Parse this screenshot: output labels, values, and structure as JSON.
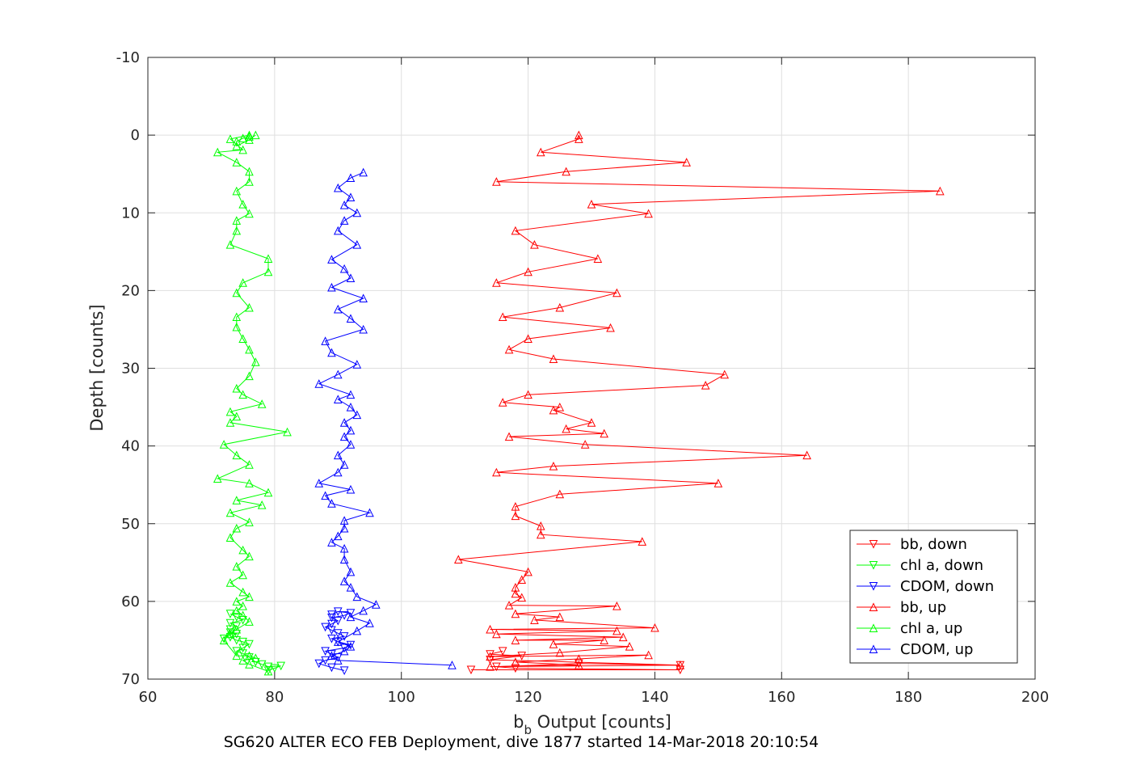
{
  "chart_data": {
    "type": "line",
    "caption": "SG620 ALTER ECO FEB Deployment, dive 1877 started 14-Mar-2018 20:10:54",
    "xlabel": {
      "main": "b",
      "sub": "b",
      "rest": " Output [counts]"
    },
    "ylabel": "Depth [counts]",
    "xlim": [
      60,
      200
    ],
    "ylim": [
      -10,
      70
    ],
    "y_reversed": true,
    "grid": true,
    "x_ticks": [
      "60",
      "80",
      "100",
      "120",
      "140",
      "160",
      "180",
      "200"
    ],
    "y_ticks": [
      "-10",
      "0",
      "10",
      "20",
      "30",
      "40",
      "50",
      "60",
      "70"
    ],
    "legend_position": "bottom-right",
    "series": [
      {
        "name": "bb, down",
        "color": "#ff0000",
        "marker": "triangle-down",
        "x": [
          111,
          144,
          118,
          115,
          128,
          144,
          114,
          119,
          114,
          116
        ],
        "y": [
          68.8,
          68.8,
          68.6,
          68.4,
          68.0,
          68.2,
          67.5,
          67.0,
          66.8,
          66.4
        ]
      },
      {
        "name": "chl a, down",
        "color": "#00ff00",
        "marker": "triangle-down",
        "x": [
          79,
          80,
          81,
          79,
          78,
          77,
          76,
          75,
          74,
          75,
          76,
          75,
          74,
          73,
          74,
          73,
          72,
          73,
          74,
          73,
          75,
          74,
          73
        ],
        "y": [
          68.9,
          68.6,
          68.3,
          68.4,
          68.1,
          67.8,
          67.2,
          66.7,
          66.4,
          66.0,
          65.5,
          65.2,
          65.0,
          64.6,
          64.2,
          64.0,
          64.8,
          63.6,
          63.2,
          62.8,
          62.4,
          62.0,
          61.6
        ]
      },
      {
        "name": "CDOM, down",
        "color": "#0000ff",
        "marker": "triangle-down",
        "x": [
          91,
          89,
          87,
          88,
          90,
          89,
          88,
          91,
          92,
          90,
          89,
          91,
          90,
          89,
          88,
          89,
          90,
          89,
          91,
          92,
          90,
          89
        ],
        "y": [
          68.9,
          68.5,
          68.0,
          67.6,
          67.2,
          66.8,
          66.4,
          66.0,
          65.6,
          65.2,
          64.8,
          64.5,
          64.1,
          63.7,
          63.3,
          62.9,
          62.5,
          62.1,
          61.8,
          61.5,
          61.3,
          61.7
        ]
      },
      {
        "name": "bb, up",
        "color": "#ff0000",
        "marker": "triangle-up",
        "x": [
          144,
          114,
          128,
          118,
          128,
          139,
          114,
          125,
          136,
          124,
          132,
          118,
          135,
          115,
          134,
          114,
          140,
          121,
          125,
          118,
          134,
          117,
          119,
          118,
          118,
          119,
          120,
          109,
          138,
          122,
          122,
          118,
          118,
          125,
          150,
          115,
          124,
          164,
          129,
          117,
          132,
          126,
          130,
          124,
          125,
          116,
          120,
          148,
          151,
          124,
          117,
          120,
          133,
          116,
          125,
          134,
          115,
          120,
          131,
          121,
          118,
          139,
          130,
          185,
          115,
          126,
          145,
          122,
          128,
          128
        ],
        "y": [
          68.2,
          68.4,
          68.2,
          67.8,
          67.4,
          66.9,
          67.1,
          66.6,
          65.8,
          65.5,
          65.0,
          65.0,
          64.6,
          64.2,
          63.8,
          63.6,
          63.4,
          62.4,
          62.0,
          61.6,
          60.6,
          60.5,
          59.5,
          59.0,
          58.2,
          57.2,
          56.2,
          54.6,
          52.3,
          51.4,
          50.3,
          49.0,
          47.8,
          46.2,
          44.8,
          43.4,
          42.6,
          41.2,
          39.8,
          38.8,
          38.4,
          37.8,
          37.0,
          35.4,
          35.0,
          34.4,
          33.4,
          32.2,
          30.8,
          28.8,
          27.6,
          26.2,
          24.8,
          23.4,
          22.2,
          20.3,
          19.0,
          17.6,
          15.9,
          14.1,
          12.3,
          10.1,
          8.9,
          7.2,
          6.0,
          4.7,
          3.5,
          2.2,
          0.5,
          0.0
        ]
      },
      {
        "name": "chl a, up",
        "color": "#00ff00",
        "marker": "triangle-up",
        "x": [
          79,
          76,
          75,
          77,
          76,
          74,
          72,
          73,
          74,
          76,
          75,
          74,
          75,
          74,
          76,
          75,
          73,
          75,
          74,
          76,
          75,
          73,
          74,
          76,
          73,
          78,
          74,
          79,
          76,
          71,
          76,
          74,
          72,
          82,
          73,
          74,
          73,
          78,
          75,
          74,
          76,
          77,
          76,
          75,
          74,
          74,
          76,
          74,
          75,
          79,
          79,
          73,
          74,
          74,
          76,
          75,
          74,
          76,
          76,
          74,
          71,
          75,
          73,
          76,
          76,
          75,
          74,
          74,
          76,
          77
        ],
        "y": [
          69.0,
          68.1,
          67.6,
          67.3,
          67.0,
          67.0,
          65.0,
          64.2,
          63.6,
          62.6,
          61.8,
          61.2,
          60.6,
          60.0,
          59.4,
          58.8,
          57.6,
          56.6,
          55.5,
          54.2,
          53.4,
          51.8,
          50.6,
          49.8,
          48.6,
          47.6,
          47.0,
          46.0,
          44.8,
          44.2,
          42.4,
          41.2,
          39.8,
          38.2,
          37.0,
          36.2,
          35.6,
          34.6,
          33.4,
          32.6,
          31.0,
          29.2,
          27.6,
          26.2,
          24.7,
          23.4,
          22.2,
          20.3,
          19.0,
          17.6,
          15.9,
          14.1,
          12.3,
          11.0,
          10.1,
          8.9,
          7.2,
          6.0,
          4.7,
          3.5,
          2.2,
          1.9,
          0.5,
          0.0,
          0.2,
          0.4,
          0.8,
          1.4,
          0.6,
          0.0
        ]
      },
      {
        "name": "CDOM, up",
        "color": "#0000ff",
        "marker": "triangle-up",
        "x": [
          108,
          90,
          89,
          91,
          92,
          90,
          93,
          95,
          92,
          94,
          96,
          93,
          92,
          91,
          92,
          91,
          91,
          89,
          90,
          91,
          91,
          95,
          89,
          88,
          92,
          87,
          90,
          91,
          90,
          92,
          91,
          92,
          91,
          93,
          92,
          90,
          92,
          87,
          90,
          93,
          89,
          88,
          94,
          92,
          90,
          94,
          89,
          92,
          91,
          89,
          93,
          90,
          91,
          93,
          91,
          92,
          90,
          92,
          94
        ],
        "y": [
          68.2,
          67.6,
          67.0,
          66.4,
          65.8,
          65.2,
          63.8,
          62.8,
          62.0,
          61.2,
          60.4,
          59.4,
          58.2,
          57.4,
          56.2,
          54.6,
          53.2,
          52.4,
          51.6,
          50.6,
          49.6,
          48.6,
          47.4,
          46.4,
          45.6,
          44.8,
          43.4,
          42.4,
          41.2,
          39.8,
          38.8,
          38.0,
          37.0,
          36.0,
          35.0,
          34.0,
          33.4,
          32.0,
          30.8,
          29.5,
          28.0,
          26.5,
          25.0,
          23.6,
          22.4,
          21.0,
          19.6,
          18.4,
          17.2,
          16.0,
          14.1,
          12.3,
          11.0,
          10.0,
          9.0,
          8.0,
          6.8,
          5.5,
          4.8
        ]
      }
    ]
  }
}
